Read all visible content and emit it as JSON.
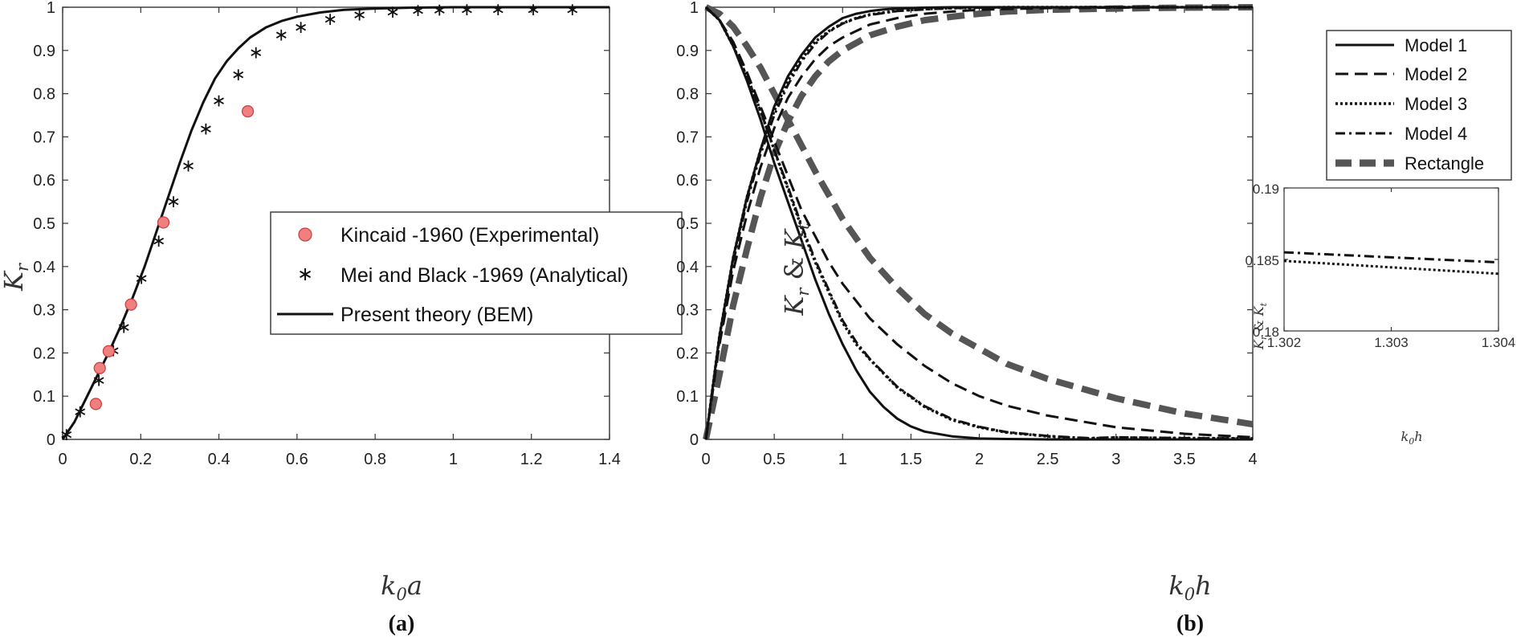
{
  "chart_data": [
    {
      "panel": "a",
      "type": "line",
      "caption": "(a)",
      "xlabel": "k0a",
      "ylabel": "Kr",
      "xlim": [
        0,
        1.4
      ],
      "ylim": [
        0,
        1
      ],
      "xticks": [
        "0",
        "0.2",
        "0.4",
        "0.6",
        "0.8",
        "1",
        "1.2",
        "1.4"
      ],
      "yticks": [
        "0",
        "0.1",
        "0.2",
        "0.3",
        "0.4",
        "0.5",
        "0.6",
        "0.7",
        "0.8",
        "0.9",
        "1"
      ],
      "legend_position": "center-right",
      "series": [
        {
          "name": "Kincaid -1960 (Experimental)",
          "style": "red-circle",
          "color": "#f08080",
          "x": [
            0.085,
            0.095,
            0.118,
            0.175,
            0.258,
            0.474
          ],
          "y": [
            0.082,
            0.165,
            0.204,
            0.312,
            0.502,
            0.759
          ]
        },
        {
          "name": "Mei and Black -1969 (Analytical)",
          "style": "asterisk",
          "color": "#111111",
          "x": [
            0.01,
            0.045,
            0.093,
            0.13,
            0.157,
            0.202,
            0.246,
            0.284,
            0.322,
            0.367,
            0.4,
            0.45,
            0.495,
            0.56,
            0.61,
            0.685,
            0.76,
            0.845,
            0.91,
            0.965,
            1.035,
            1.115,
            1.205,
            1.305
          ],
          "y": [
            0.015,
            0.068,
            0.14,
            0.209,
            0.263,
            0.376,
            0.463,
            0.554,
            0.637,
            0.722,
            0.787,
            0.848,
            0.899,
            0.94,
            0.957,
            0.976,
            0.986,
            0.993,
            0.996,
            0.997,
            0.998,
            0.998,
            0.998,
            0.998
          ]
        },
        {
          "name": "Present theory (BEM)",
          "style": "solid",
          "color": "#111111",
          "x": [
            0,
            0.03,
            0.06,
            0.09,
            0.12,
            0.15,
            0.18,
            0.21,
            0.24,
            0.27,
            0.3,
            0.33,
            0.36,
            0.39,
            0.42,
            0.45,
            0.48,
            0.52,
            0.56,
            0.6,
            0.66,
            0.72,
            0.8,
            0.9,
            1.0,
            1.1,
            1.2,
            1.3,
            1.4
          ],
          "y": [
            0.0,
            0.04,
            0.095,
            0.15,
            0.205,
            0.265,
            0.33,
            0.4,
            0.48,
            0.56,
            0.64,
            0.715,
            0.78,
            0.835,
            0.875,
            0.905,
            0.93,
            0.953,
            0.968,
            0.978,
            0.988,
            0.994,
            0.997,
            0.999,
            1.0,
            1.0,
            1.0,
            1.0,
            1.0
          ]
        }
      ]
    },
    {
      "panel": "b",
      "type": "line",
      "caption": "(b)",
      "xlabel": "k0h",
      "ylabel": "Kr & Kt",
      "xlim": [
        0,
        4
      ],
      "ylim": [
        0,
        1
      ],
      "xticks": [
        "0",
        "0.5",
        "1",
        "1.5",
        "2",
        "2.5",
        "3",
        "3.5",
        "4"
      ],
      "yticks": [
        "0",
        "0.1",
        "0.2",
        "0.3",
        "0.4",
        "0.5",
        "0.6",
        "0.7",
        "0.8",
        "0.9",
        "1"
      ],
      "legend_position": "top-right",
      "series": [
        {
          "name": "Model 1",
          "style": "solid",
          "color": "#111111",
          "x": [
            0,
            0.1,
            0.2,
            0.3,
            0.4,
            0.5,
            0.6,
            0.7,
            0.8,
            0.9,
            1.0,
            1.1,
            1.2,
            1.3,
            1.4,
            1.5,
            1.6,
            1.8,
            2.0,
            2.2,
            2.5,
            3.0,
            3.5,
            4.0
          ],
          "y_kr": [
            1.0,
            0.97,
            0.91,
            0.83,
            0.74,
            0.64,
            0.55,
            0.46,
            0.37,
            0.29,
            0.22,
            0.16,
            0.11,
            0.075,
            0.048,
            0.03,
            0.018,
            0.007,
            0.002,
            0.001,
            0.0,
            0.0,
            0.0,
            0.0
          ],
          "y_kt": [
            0.0,
            0.24,
            0.42,
            0.56,
            0.67,
            0.77,
            0.84,
            0.89,
            0.93,
            0.955,
            0.975,
            0.985,
            0.991,
            0.995,
            0.997,
            0.998,
            0.999,
            1.0,
            1.0,
            1.0,
            1.0,
            1.0,
            1.0,
            1.0
          ]
        },
        {
          "name": "Model 2",
          "style": "dashed",
          "color": "#111111",
          "x": [
            0,
            0.1,
            0.2,
            0.3,
            0.4,
            0.5,
            0.6,
            0.7,
            0.8,
            0.9,
            1.0,
            1.2,
            1.4,
            1.6,
            1.8,
            2.0,
            2.2,
            2.5,
            3.0,
            3.5,
            4.0
          ],
          "y_kr": [
            1.0,
            0.97,
            0.92,
            0.85,
            0.77,
            0.69,
            0.61,
            0.53,
            0.47,
            0.41,
            0.36,
            0.28,
            0.22,
            0.17,
            0.13,
            0.1,
            0.078,
            0.055,
            0.028,
            0.013,
            0.005
          ],
          "y_kt": [
            0.0,
            0.22,
            0.39,
            0.52,
            0.63,
            0.72,
            0.79,
            0.84,
            0.88,
            0.91,
            0.93,
            0.96,
            0.975,
            0.985,
            0.99,
            0.994,
            0.996,
            0.998,
            0.999,
            1.0,
            1.0
          ]
        },
        {
          "name": "Model 3",
          "style": "dotted",
          "color": "#111111",
          "x": [
            0,
            0.1,
            0.2,
            0.3,
            0.4,
            0.5,
            0.6,
            0.7,
            0.8,
            0.9,
            1.0,
            1.1,
            1.2,
            1.4,
            1.6,
            1.8,
            2.0,
            2.2,
            2.5,
            2.8,
            3.0,
            3.5,
            4.0
          ],
          "y_kr": [
            1.0,
            0.97,
            0.91,
            0.84,
            0.76,
            0.67,
            0.58,
            0.49,
            0.41,
            0.34,
            0.27,
            0.22,
            0.185,
            0.12,
            0.075,
            0.045,
            0.028,
            0.016,
            0.007,
            0.002,
            0.004,
            0.003,
            0.002
          ],
          "y_kt": [
            0.0,
            0.24,
            0.42,
            0.56,
            0.67,
            0.76,
            0.83,
            0.88,
            0.92,
            0.945,
            0.963,
            0.975,
            0.983,
            0.992,
            0.996,
            0.998,
            0.999,
            1.0,
            1.0,
            1.0,
            1.0,
            1.0,
            1.0
          ]
        },
        {
          "name": "Model 4",
          "style": "dash-dot",
          "color": "#111111",
          "x": [
            0,
            0.1,
            0.2,
            0.3,
            0.4,
            0.5,
            0.6,
            0.7,
            0.8,
            0.9,
            1.0,
            1.1,
            1.2,
            1.4,
            1.6,
            1.8,
            2.0,
            2.2,
            2.5,
            2.8,
            3.0,
            3.5,
            4.0
          ],
          "y_kr": [
            1.0,
            0.97,
            0.91,
            0.84,
            0.76,
            0.67,
            0.585,
            0.495,
            0.415,
            0.345,
            0.275,
            0.225,
            0.186,
            0.122,
            0.077,
            0.047,
            0.029,
            0.017,
            0.008,
            0.003,
            0.005,
            0.003,
            0.002
          ],
          "y_kt": [
            0.0,
            0.23,
            0.41,
            0.55,
            0.66,
            0.75,
            0.82,
            0.875,
            0.915,
            0.943,
            0.962,
            0.974,
            0.982,
            0.991,
            0.995,
            0.998,
            0.999,
            1.0,
            1.0,
            1.0,
            1.0,
            1.0,
            1.0
          ]
        },
        {
          "name": "Rectangle",
          "style": "thick-dashed-gray",
          "color": "#555555",
          "x": [
            0,
            0.1,
            0.2,
            0.3,
            0.4,
            0.5,
            0.6,
            0.7,
            0.8,
            0.9,
            1.0,
            1.2,
            1.4,
            1.6,
            1.8,
            2.0,
            2.2,
            2.5,
            3.0,
            3.5,
            4.0
          ],
          "y_kr": [
            1.0,
            0.985,
            0.955,
            0.91,
            0.86,
            0.8,
            0.74,
            0.68,
            0.62,
            0.565,
            0.51,
            0.42,
            0.35,
            0.29,
            0.245,
            0.21,
            0.175,
            0.14,
            0.095,
            0.06,
            0.035
          ],
          "y_kt": [
            0.0,
            0.15,
            0.31,
            0.44,
            0.56,
            0.66,
            0.735,
            0.795,
            0.84,
            0.875,
            0.9,
            0.935,
            0.955,
            0.97,
            0.978,
            0.985,
            0.99,
            0.994,
            0.997,
            0.999,
            1.0
          ]
        }
      ],
      "inset": {
        "xlabel": "k0h",
        "ylabel": "Kr & Kt",
        "xlim": [
          1.302,
          1.304
        ],
        "ylim": [
          0.18,
          0.19
        ],
        "xticks": [
          "1.302",
          "1.303",
          "1.304"
        ],
        "yticks": [
          "0.18",
          "0.185",
          "0.19"
        ],
        "series": [
          {
            "name": "Model 4",
            "style": "dash-dot",
            "x": [
              1.302,
              1.304
            ],
            "y": [
              0.1855,
              0.1848
            ]
          },
          {
            "name": "Model 3",
            "style": "dotted",
            "x": [
              1.302,
              1.304
            ],
            "y": [
              0.1849,
              0.184
            ]
          }
        ]
      }
    }
  ]
}
